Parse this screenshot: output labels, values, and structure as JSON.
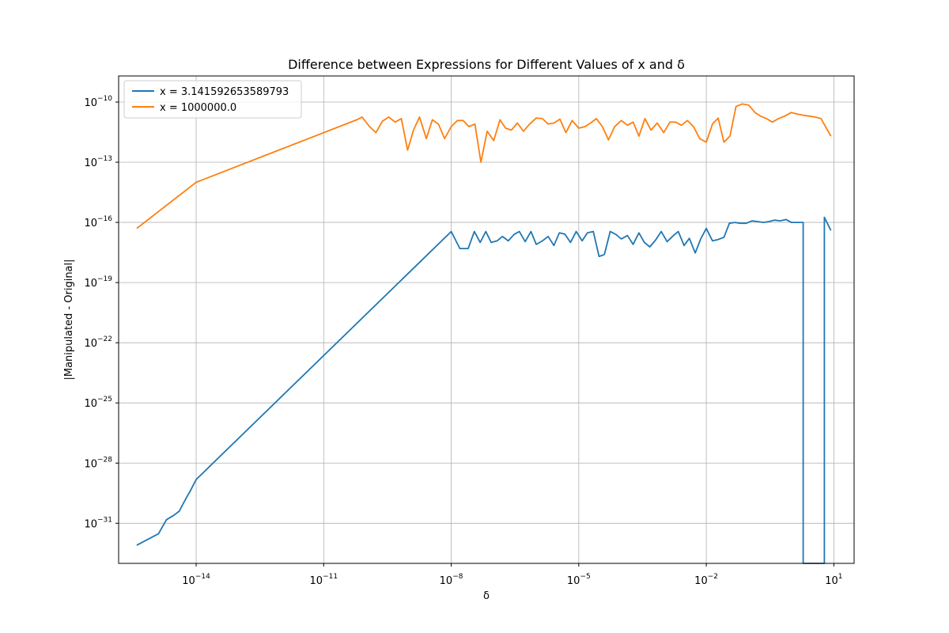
{
  "chart_data": {
    "type": "line",
    "title": "Difference between Expressions for Different Values of x and δ",
    "xlabel": "δ",
    "ylabel": "|Manipulated - Original|",
    "xscale": "log",
    "yscale": "log",
    "xlim": [
      1.5e-16,
      30
    ],
    "ylim": [
      1e-33,
      2e-09
    ],
    "grid": true,
    "legend": "upper-left",
    "xticks": [
      {
        "value": 1e-14,
        "base": "10",
        "exp": "−14"
      },
      {
        "value": 1e-11,
        "base": "10",
        "exp": "−11"
      },
      {
        "value": 1e-08,
        "base": "10",
        "exp": "−8"
      },
      {
        "value": 1e-05,
        "base": "10",
        "exp": "−5"
      },
      {
        "value": 0.01,
        "base": "10",
        "exp": "−2"
      },
      {
        "value": 10,
        "base": "10",
        "exp": "1"
      }
    ],
    "yticks": [
      {
        "value": 1e-31,
        "base": "10",
        "exp": "−31"
      },
      {
        "value": 1e-28,
        "base": "10",
        "exp": "−28"
      },
      {
        "value": 1e-25,
        "base": "10",
        "exp": "−25"
      },
      {
        "value": 1e-22,
        "base": "10",
        "exp": "−22"
      },
      {
        "value": 1e-19,
        "base": "10",
        "exp": "−19"
      },
      {
        "value": 1e-16,
        "base": "10",
        "exp": "−16"
      },
      {
        "value": 1e-13,
        "base": "10",
        "exp": "−13"
      },
      {
        "value": 1e-10,
        "base": "10",
        "exp": "−10"
      }
    ],
    "series": [
      {
        "name": "x = 3.141592653589793",
        "color": "#1f77b4",
        "x": [
          4e-16,
          1.3e-15,
          2e-15,
          3e-15,
          4e-15,
          5e-15,
          6e-15,
          7e-15,
          8e-15,
          1e-14,
          1e-08,
          1.6e-08,
          2.5e-08,
          3.5e-08,
          4.8e-08,
          6.5e-08,
          8.7e-08,
          1.2e-07,
          1.6e-07,
          2.2e-07,
          3e-07,
          4e-07,
          5.5e-07,
          7.5e-07,
          1e-06,
          1.4e-06,
          1.9e-06,
          2.6e-06,
          3.5e-06,
          4.7e-06,
          6.4e-06,
          8.7e-06,
          1.2e-05,
          1.6e-05,
          2.2e-05,
          3e-05,
          4e-05,
          5.5e-05,
          7.5e-05,
          0.0001,
          0.00014,
          0.00019,
          0.00026,
          0.00035,
          0.00047,
          0.00064,
          0.00087,
          0.0012,
          0.0016,
          0.0022,
          0.003,
          0.004,
          0.0055,
          0.0075,
          0.01,
          0.014,
          0.019,
          0.026,
          0.035,
          0.047,
          0.064,
          0.087,
          0.12,
          0.16,
          0.22,
          0.3,
          0.4,
          0.55,
          0.75,
          1.0,
          1.4,
          1.9,
          1.9,
          3.2,
          6.0,
          6.0,
          8.5
        ],
        "y": [
          8e-33,
          3e-32,
          1.5e-31,
          2.5e-31,
          4e-31,
          1e-30,
          2e-30,
          3.5e-30,
          6e-30,
          1.5e-29,
          3.5e-17,
          5e-18,
          5e-18,
          3.5e-17,
          1e-17,
          3.5e-17,
          1e-17,
          1.2e-17,
          2e-17,
          1.2e-17,
          2.5e-17,
          3.5e-17,
          1.1e-17,
          3.5e-17,
          8e-18,
          1.2e-17,
          2e-17,
          7e-18,
          3e-17,
          2.6e-17,
          1e-17,
          3.5e-17,
          1.2e-17,
          3e-17,
          3.5e-17,
          2e-18,
          2.5e-18,
          3.5e-17,
          2.5e-17,
          1.5e-17,
          2.2e-17,
          8e-18,
          3e-17,
          1e-17,
          6e-18,
          1.3e-17,
          3.5e-17,
          1.1e-17,
          2e-17,
          3.5e-17,
          7e-18,
          1.6e-17,
          3e-18,
          1.6e-17,
          5e-17,
          1.2e-17,
          1.4e-17,
          1.8e-17,
          9e-17,
          1e-16,
          9e-17,
          9e-17,
          1.2e-16,
          1.1e-16,
          1e-16,
          1.1e-16,
          1.3e-16,
          1.2e-16,
          1.4e-16,
          1e-16,
          1e-16,
          1e-16,
          1e-33,
          1e-33,
          1e-33,
          1.8e-16,
          4e-17
        ]
      },
      {
        "name": "x = 1000000.0",
        "color": "#ff7f0e",
        "x": [
          4e-16,
          1e-14,
          6e-11,
          8e-11,
          1.2e-10,
          1.7e-10,
          2.4e-10,
          3.4e-10,
          4.8e-10,
          6.7e-10,
          9.4e-10,
          1.3e-09,
          1.8e-09,
          2.6e-09,
          3.6e-09,
          5e-09,
          7e-09,
          1e-08,
          1.4e-08,
          1.9e-08,
          2.6e-08,
          3.6e-08,
          5e-08,
          7e-08,
          1e-07,
          1.4e-07,
          1.9e-07,
          2.6e-07,
          3.6e-07,
          5e-07,
          7e-07,
          1e-06,
          1.4e-06,
          1.9e-06,
          2.6e-06,
          3.6e-06,
          5e-06,
          7e-06,
          1e-05,
          1.4e-05,
          1.9e-05,
          2.6e-05,
          3.6e-05,
          5e-05,
          7e-05,
          0.0001,
          0.00014,
          0.00019,
          0.00026,
          0.00036,
          0.0005,
          0.0007,
          0.001,
          0.0014,
          0.0019,
          0.0026,
          0.0036,
          0.005,
          0.007,
          0.01,
          0.014,
          0.019,
          0.026,
          0.036,
          0.05,
          0.07,
          0.1,
          0.14,
          0.19,
          0.26,
          0.36,
          0.5,
          0.7,
          1.0,
          1.4,
          1.9,
          2.6,
          3.6,
          5,
          8.5
        ],
        "y": [
          5e-17,
          1e-14,
          1.3e-11,
          1.8e-11,
          6e-12,
          3e-12,
          1.1e-11,
          1.8e-11,
          1e-11,
          1.5e-11,
          4e-13,
          4e-12,
          1.8e-11,
          1.5e-12,
          1.3e-11,
          8e-12,
          1.5e-12,
          6e-12,
          1.2e-11,
          1.2e-11,
          6e-12,
          8e-12,
          1e-13,
          3.5e-12,
          1.2e-12,
          1.3e-11,
          5e-12,
          4e-12,
          9e-12,
          3.5e-12,
          8e-12,
          1.6e-11,
          1.5e-11,
          8e-12,
          9e-12,
          1.4e-11,
          3e-12,
          1.2e-11,
          5e-12,
          6e-12,
          9e-12,
          1.5e-11,
          6e-12,
          1.3e-12,
          6e-12,
          1.2e-11,
          7e-12,
          1e-11,
          2e-12,
          1.5e-11,
          4e-12,
          9e-12,
          3e-12,
          1e-11,
          1e-11,
          7e-12,
          1.2e-11,
          6e-12,
          1.5e-12,
          1e-12,
          8e-12,
          1.6e-11,
          1e-12,
          2e-12,
          6e-11,
          8e-11,
          7e-11,
          3e-11,
          2e-11,
          1.5e-11,
          1e-11,
          1.5e-11,
          2e-11,
          3e-11,
          2.5e-11,
          2.2e-11,
          2e-11,
          1.8e-11,
          1.5e-11,
          2e-12
        ]
      }
    ]
  }
}
